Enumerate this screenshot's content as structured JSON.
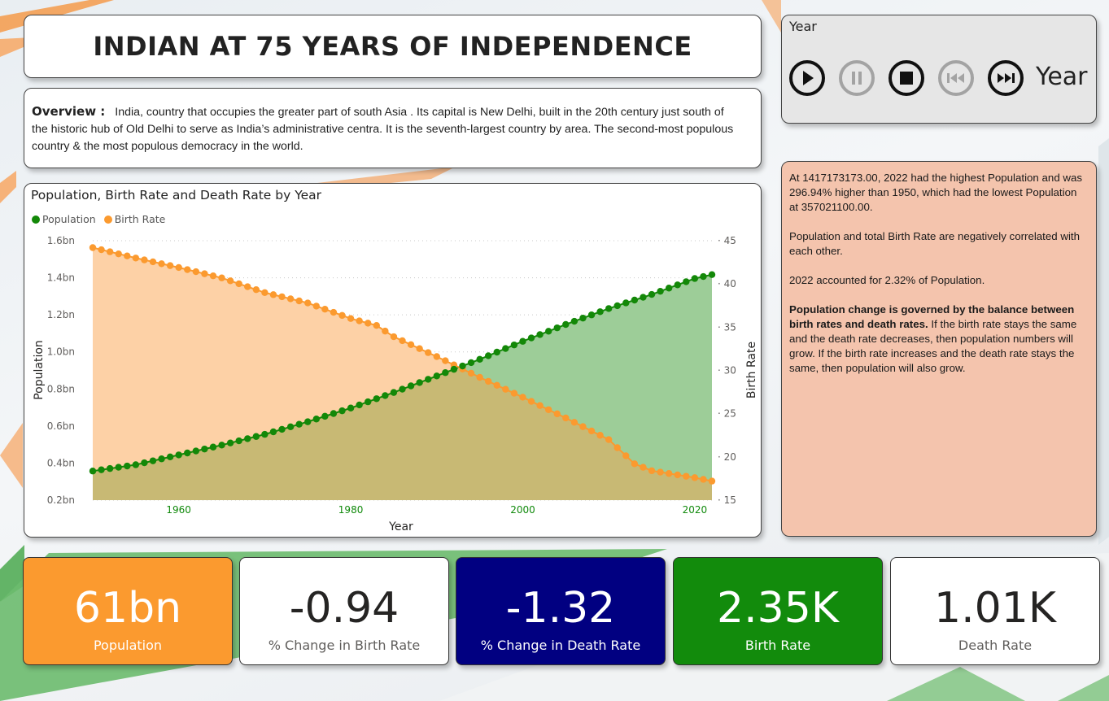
{
  "header": {
    "title": "INDIAN AT 75 YEARS OF INDEPENDENCE"
  },
  "overview": {
    "label": "Overview :",
    "text": "India, country that occupies the greater part of south Asia . Its capital is New Delhi, built in the 20th century just south of the historic hub of Old Delhi to serve as India’s administrative centra. It is the seventh-largest country by area. The second-most populous  country & the most populous democracy in the world."
  },
  "year_slicer": {
    "label": "Year",
    "field_label": "Year",
    "buttons": [
      {
        "name": "play",
        "icon": "play-icon",
        "enabled": true
      },
      {
        "name": "pause",
        "icon": "pause-icon",
        "enabled": false
      },
      {
        "name": "stop",
        "icon": "stop-icon",
        "enabled": true
      },
      {
        "name": "previous",
        "icon": "skip-back-icon",
        "enabled": false
      },
      {
        "name": "next",
        "icon": "skip-forward-icon",
        "enabled": true
      }
    ]
  },
  "insights": {
    "p1": "At 1417173173.00, 2022 had the highest Population and was 296.94% higher than 1950, which had the lowest Population at 357021100.00.",
    "p2": "Population and total Birth Rate are negatively correlated with each other.",
    "p3": "2022 accounted for 2.32% of Population.",
    "p4_bold": "Population change is governed by the balance between birth rates and death rates.",
    "p4_rest": " If the birth rate stays the same and the death rate decreases, then population numbers will grow. If the birth rate increases and the death rate stays the same, then population will also grow."
  },
  "kpis": [
    {
      "value": "61bn",
      "label": "Population",
      "bg": "#fb9a2f",
      "fg": "#ffffff"
    },
    {
      "value": "-0.94",
      "label": "% Change in Birth Rate",
      "bg": "#ffffff",
      "fg": "#252423",
      "lfg": "#605e5c"
    },
    {
      "value": "-1.32",
      "label": "% Change in Death Rate",
      "bg": "#010081",
      "fg": "#ffffff"
    },
    {
      "value": "2.35K",
      "label": "Birth Rate",
      "bg": "#128b0c",
      "fg": "#ffffff"
    },
    {
      "value": "1.01K",
      "label": "Death Rate",
      "bg": "#ffffff",
      "fg": "#252423",
      "lfg": "#605e5c"
    }
  ],
  "colors": {
    "population": "#138808",
    "birth_rate": "#fb9a2f",
    "population_area": "#9dcd98",
    "birth_area": "#fdd1a6",
    "overlap_area": "#c8b974",
    "axis_text": "#605e5c",
    "x_tick_text": "#118a0c"
  },
  "chart_data": {
    "type": "area",
    "title": "Population, Birth Rate and Death Rate by Year",
    "xlabel": "Year",
    "ylabel_left": "Population",
    "ylabel_right": "Birth Rate",
    "legend": [
      "Population",
      "Birth Rate"
    ],
    "legend_position": "top-left",
    "x_ticks": [
      1960,
      1980,
      2000,
      2020
    ],
    "y_left_ticks": [
      "0.2bn",
      "0.4bn",
      "0.6bn",
      "0.8bn",
      "1.0bn",
      "1.2bn",
      "1.4bn",
      "1.6bn"
    ],
    "y_left_range": [
      0.2,
      1.6
    ],
    "y_right_ticks": [
      "15",
      "20",
      "25",
      "30",
      "35",
      "40",
      "45"
    ],
    "y_right_range": [
      15,
      45
    ],
    "x_range": [
      1950,
      2022
    ],
    "grid": true,
    "series": [
      {
        "name": "Population",
        "axis": "left",
        "unit": "bn",
        "anchors": [
          [
            1950,
            0.357
          ],
          [
            1955,
            0.391
          ],
          [
            1960,
            0.444
          ],
          [
            1965,
            0.497
          ],
          [
            1970,
            0.555
          ],
          [
            1975,
            0.623
          ],
          [
            1980,
            0.697
          ],
          [
            1985,
            0.781
          ],
          [
            1990,
            0.87
          ],
          [
            1995,
            0.96
          ],
          [
            2000,
            1.057
          ],
          [
            2005,
            1.148
          ],
          [
            2010,
            1.234
          ],
          [
            2015,
            1.31
          ],
          [
            2020,
            1.396
          ],
          [
            2022,
            1.417
          ]
        ]
      },
      {
        "name": "Birth Rate",
        "axis": "right",
        "anchors": [
          [
            1950,
            44.2
          ],
          [
            1955,
            43.0
          ],
          [
            1960,
            41.9
          ],
          [
            1965,
            40.7
          ],
          [
            1970,
            39.0
          ],
          [
            1975,
            37.8
          ],
          [
            1980,
            36.0
          ],
          [
            1983,
            35.2
          ],
          [
            1985,
            33.9
          ],
          [
            1990,
            31.6
          ],
          [
            1995,
            29.2
          ],
          [
            2000,
            26.9
          ],
          [
            2005,
            24.5
          ],
          [
            2010,
            22.0
          ],
          [
            2013,
            19.2
          ],
          [
            2015,
            18.4
          ],
          [
            2020,
            17.6
          ],
          [
            2022,
            17.2
          ]
        ]
      }
    ]
  }
}
